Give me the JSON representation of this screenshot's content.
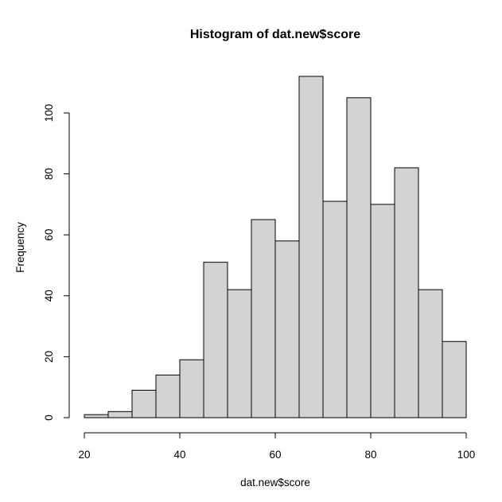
{
  "chart_data": {
    "type": "bar",
    "title": "Histogram of dat.new$score",
    "xlabel": "dat.new$score",
    "ylabel": "Frequency",
    "bins": [
      {
        "start": 20,
        "end": 25,
        "count": 1
      },
      {
        "start": 25,
        "end": 30,
        "count": 2
      },
      {
        "start": 30,
        "end": 35,
        "count": 9
      },
      {
        "start": 35,
        "end": 40,
        "count": 14
      },
      {
        "start": 40,
        "end": 45,
        "count": 19
      },
      {
        "start": 45,
        "end": 50,
        "count": 51
      },
      {
        "start": 50,
        "end": 55,
        "count": 42
      },
      {
        "start": 55,
        "end": 60,
        "count": 65
      },
      {
        "start": 60,
        "end": 65,
        "count": 58
      },
      {
        "start": 65,
        "end": 70,
        "count": 112
      },
      {
        "start": 70,
        "end": 75,
        "count": 71
      },
      {
        "start": 75,
        "end": 80,
        "count": 105
      },
      {
        "start": 80,
        "end": 85,
        "count": 70
      },
      {
        "start": 85,
        "end": 90,
        "count": 82
      },
      {
        "start": 90,
        "end": 95,
        "count": 42
      },
      {
        "start": 95,
        "end": 100,
        "count": 25
      }
    ],
    "xlim": [
      20,
      100
    ],
    "ylim": [
      0,
      112
    ],
    "x_ticks": [
      20,
      40,
      60,
      80,
      100
    ],
    "y_ticks": [
      0,
      20,
      40,
      60,
      80,
      100
    ],
    "grid": false,
    "bar_fill": "#d3d3d3",
    "bar_stroke": "#000000"
  }
}
